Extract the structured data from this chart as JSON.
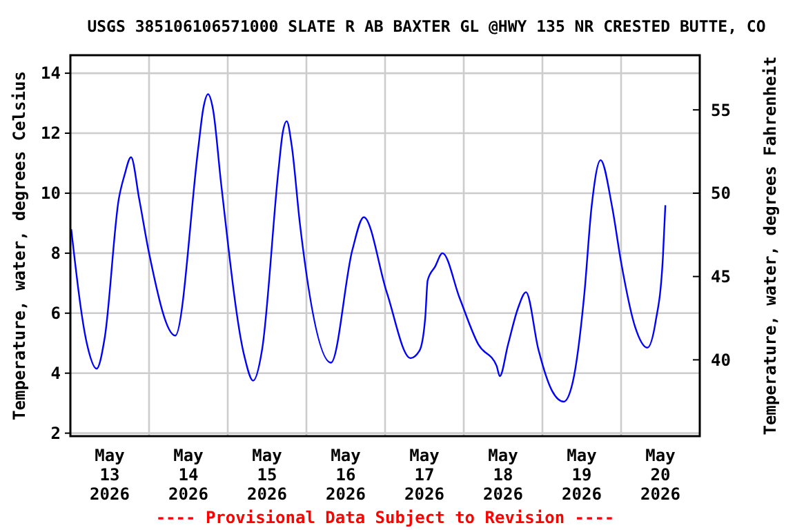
{
  "chart_data": {
    "type": "line",
    "title": "USGS 385106106571000 SLATE R AB BAXTER GL @HWY 135 NR CRESTED BUTTE, CO",
    "ylabel": "Temperature, water, degrees Celsius",
    "y2label": "Temperature, water, degrees Fahrenheit",
    "annotations": [
      "---- Provisional Data Subject to Revision ----"
    ],
    "x": [
      "2026-05-13T00:15",
      "2026-05-13T05:00",
      "2026-05-13T08:00",
      "2026-05-13T10:30",
      "2026-05-13T14:45",
      "2026-05-13T16:30",
      "2026-05-13T18:30",
      "2026-05-13T21:00",
      "2026-05-14T00:00",
      "2026-05-14T08:00",
      "2026-05-14T15:00",
      "2026-05-14T16:30",
      "2026-05-14T18:00",
      "2026-05-14T19:30",
      "2026-05-14T22:00",
      "2026-05-15T05:00",
      "2026-05-15T07:45",
      "2026-05-15T10:30",
      "2026-05-15T15:30",
      "2026-05-15T16:45",
      "2026-05-15T18:00",
      "2026-05-15T19:30",
      "2026-05-15T22:00",
      "2026-05-16T07:30",
      "2026-05-16T14:00",
      "2026-05-16T17:30",
      "2026-05-17T00:30",
      "2026-05-17T07:45",
      "2026-05-17T10:30",
      "2026-05-17T12:15",
      "2026-05-17T13:00",
      "2026-05-17T15:15",
      "2026-05-17T17:30",
      "2026-05-17T22:45",
      "2026-05-18T04:30",
      "2026-05-18T10:00",
      "2026-05-18T11:00",
      "2026-05-18T13:30",
      "2026-05-18T16:30",
      "2026-05-18T19:00",
      "2026-05-18T22:45",
      "2026-05-19T03:00",
      "2026-05-19T06:30",
      "2026-05-19T09:15",
      "2026-05-19T12:45",
      "2026-05-19T15:00",
      "2026-05-19T17:45",
      "2026-05-19T21:15",
      "2026-05-20T00:00",
      "2026-05-20T04:15",
      "2026-05-20T08:00",
      "2026-05-20T10:30",
      "2026-05-20T12:45",
      "2026-05-20T13:30"
    ],
    "series": [
      {
        "color": "#0000ff",
        "values": [
          8.8,
          5.0,
          4.15,
          5.2,
          9.8,
          10.6,
          11.2,
          9.8,
          8.0,
          5.25,
          11.5,
          12.8,
          13.3,
          12.8,
          10.3,
          4.6,
          3.75,
          4.8,
          10.8,
          12.0,
          12.4,
          11.6,
          9.0,
          4.35,
          8.1,
          9.2,
          6.7,
          4.5,
          4.75,
          5.85,
          7.1,
          7.55,
          8.0,
          6.5,
          4.95,
          4.25,
          3.9,
          4.95,
          6.15,
          6.7,
          4.8,
          3.4,
          3.05,
          3.7,
          6.6,
          9.55,
          11.1,
          9.55,
          7.7,
          5.55,
          4.85,
          5.7,
          7.85,
          9.6
        ]
      }
    ],
    "xlim": [
      "2026-05-13T00:00",
      "2026-05-21T00:00"
    ],
    "xticks": [
      {
        "value": "2026-05-13T12:00",
        "label": "May\n13\n2026"
      },
      {
        "value": "2026-05-14T00:00",
        "label": null
      },
      {
        "value": "2026-05-14T12:00",
        "label": "May\n14\n2026"
      },
      {
        "value": "2026-05-15T00:00",
        "label": null
      },
      {
        "value": "2026-05-15T12:00",
        "label": "May\n15\n2026"
      },
      {
        "value": "2026-05-16T00:00",
        "label": null
      },
      {
        "value": "2026-05-16T12:00",
        "label": "May\n16\n2026"
      },
      {
        "value": "2026-05-17T00:00",
        "label": null
      },
      {
        "value": "2026-05-17T12:00",
        "label": "May\n17\n2026"
      },
      {
        "value": "2026-05-18T00:00",
        "label": null
      },
      {
        "value": "2026-05-18T12:00",
        "label": "May\n18\n2026"
      },
      {
        "value": "2026-05-19T00:00",
        "label": null
      },
      {
        "value": "2026-05-19T12:00",
        "label": "May\n19\n2026"
      },
      {
        "value": "2026-05-20T00:00",
        "label": null
      },
      {
        "value": "2026-05-20T12:00",
        "label": "May\n20\n2026"
      }
    ],
    "ylim": [
      1.9,
      14.6
    ],
    "yticks": [
      2,
      4,
      6,
      8,
      10,
      12,
      14
    ],
    "y2lim": [
      35.42,
      58.28
    ],
    "y2ticks": [
      40,
      45,
      50,
      55
    ],
    "grid": true,
    "line_style": "solid",
    "marker": "none"
  }
}
